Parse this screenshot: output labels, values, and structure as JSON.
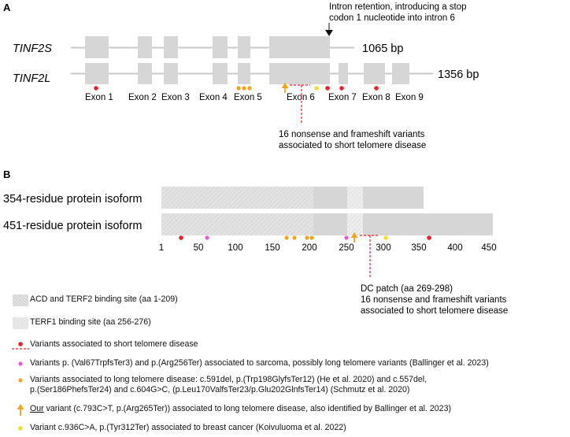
{
  "panel_a": {
    "label": "A",
    "note_intron": [
      "Intron retention, introducing a stop",
      "codon 1 nucleotide into intron 6"
    ],
    "isoform_s": {
      "name": "TINF2S",
      "size": "1065 bp"
    },
    "isoform_l": {
      "name": "TINF2L",
      "size": "1356 bp"
    },
    "exons": [
      "Exon 1",
      "Exon 2",
      "Exon 3",
      "Exon 4",
      "Exon 5",
      "Exon 6",
      "Exon 7",
      "Exon 8",
      "Exon 9"
    ],
    "note_nonsense": [
      "16 nonsense and frameshift variants",
      "associated to short telomere disease"
    ]
  },
  "panel_b": {
    "label": "B",
    "protein_354": "354-residue protein isoform",
    "protein_451": "451-residue protein isoform",
    "axis_ticks": [
      "1",
      "50",
      "100",
      "150",
      "200",
      "250",
      "300",
      "350",
      "400",
      "450"
    ],
    "note_dc": [
      "DC patch (aa 269-298)",
      "16 nonsense and frameshift variants",
      "associated to short telomere disease"
    ]
  },
  "legend": {
    "acd": "ACD and TERF2 binding site (aa 1-209)",
    "terf1": "TERF1 binding site (aa 256-276)",
    "short": "Variants associated to short telomere disease",
    "sarcoma": "Variants p. (Val67TrpfsTer3) and p.(Arg256Ter) associated to sarcoma, possibly long telomere variants (Ballinger et al. 2023)",
    "long_1": "Variants associated to long telomere disease:  c.591del, p.(Trp198GlyfsTer12) (He et al. 2020) and c.557del,",
    "long_2": "p.(Ser186PhefsTer24) and c.604G>C, (p.Leu170ValfsTer23/p.Glu202GlnfsTer14) (Schmutz et al. 2020)",
    "our_prefix": "Our",
    "our_rest": " variant (c.793C>T, p.(Arg265Ter)) associated to long telomere disease, also identified by Ballinger et al. 2023)",
    "breast": "Variant c.936C>A, p.(Tyr312Ter) associated to breast cancer (Koivuluoma et al. 2022)"
  },
  "colors": {
    "box": "#d6d6d6",
    "line": "#c8c8c8",
    "short_variant": "#e8202a",
    "sarcoma_variant": "#e45bd8",
    "long_variant": "#f0a51c",
    "our_variant": "#f0a51c",
    "breast_variant": "#f5dc2e",
    "dashed": "#e8202a"
  }
}
